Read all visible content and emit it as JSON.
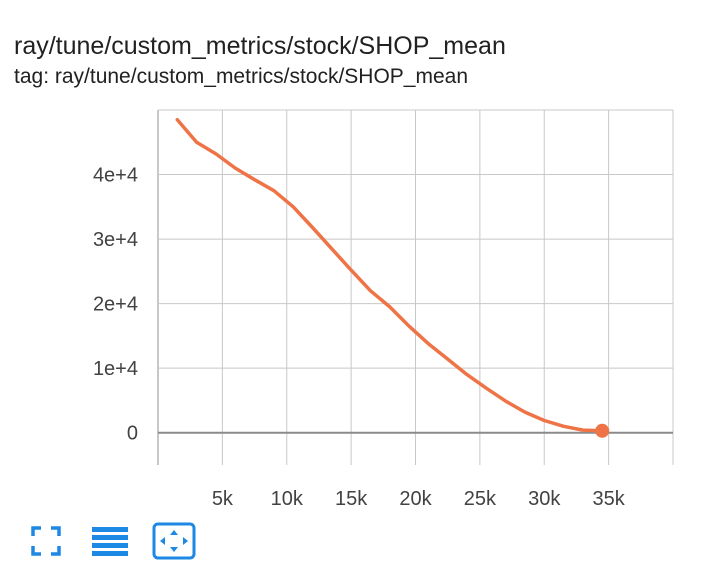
{
  "card": {
    "title": "ray/tune/custom_metrics/stock/SHOP_mean",
    "tag": "tag: ray/tune/custom_metrics/stock/SHOP_mean"
  },
  "colors": {
    "series": "#ee7447",
    "grid": "#c8c8c8",
    "zero_line": "#8a8a8a",
    "toolbar_icon": "#1e88e5"
  },
  "toolbar": {
    "icons": [
      "fullscreen-icon",
      "toggle-log-scale-icon",
      "fit-domain-icon"
    ]
  },
  "chart_data": {
    "type": "line",
    "title": "",
    "xlabel": "",
    "ylabel": "",
    "xlim": [
      0,
      40000
    ],
    "ylim": [
      -5000,
      50000
    ],
    "xticks": [
      5000,
      10000,
      15000,
      20000,
      25000,
      30000,
      35000
    ],
    "xtick_labels": [
      "5k",
      "10k",
      "15k",
      "20k",
      "25k",
      "30k",
      "35k"
    ],
    "yticks": [
      0,
      10000,
      20000,
      30000,
      40000
    ],
    "ytick_labels": [
      "0",
      "1e+4",
      "2e+4",
      "3e+4",
      "4e+4"
    ],
    "grid": true,
    "series": [
      {
        "x": [
          1500,
          3000,
          4500,
          6000,
          7500,
          9000,
          10500,
          12000,
          13500,
          15000,
          16500,
          18000,
          19500,
          21000,
          22500,
          24000,
          25500,
          27000,
          28500,
          30000,
          31500,
          33000,
          34500
        ],
        "y": [
          48500,
          45000,
          43200,
          41000,
          39200,
          37500,
          35000,
          31800,
          28500,
          25200,
          22000,
          19500,
          16500,
          13800,
          11400,
          9000,
          6900,
          4900,
          3200,
          1900,
          1000,
          400,
          300
        ]
      }
    ],
    "last_point_marker": true
  }
}
